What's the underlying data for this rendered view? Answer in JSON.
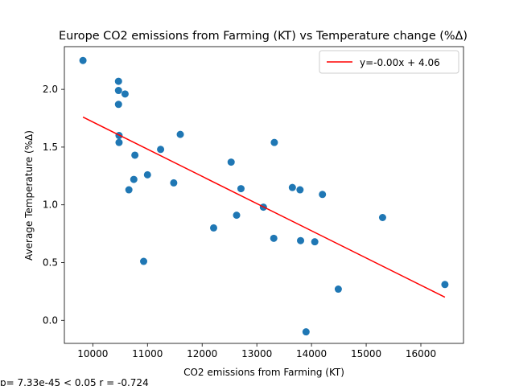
{
  "chart_data": {
    "type": "scatter",
    "title": "Europe CO2 emissions from Farming (KT) vs Temperature change (%Δ)",
    "xlabel": "CO2 emissions from Farming (KT)",
    "ylabel": "Average Temperature (%Δ)",
    "xlim": [
      9480,
      16780
    ],
    "ylim": [
      -0.2,
      2.37
    ],
    "x_ticks": [
      10000,
      11000,
      12000,
      13000,
      14000,
      15000,
      16000
    ],
    "y_ticks": [
      0.0,
      0.5,
      1.0,
      1.5,
      2.0
    ],
    "x_tick_labels": [
      "10000",
      "11000",
      "12000",
      "13000",
      "14000",
      "15000",
      "16000"
    ],
    "y_tick_labels": [
      "0.0",
      "0.5",
      "1.0",
      "1.5",
      "2.0"
    ],
    "grid": false,
    "legend_position": "top-right",
    "point_color": "#1f77b4",
    "fit_color": "#ff0000",
    "points": [
      {
        "x": 9820,
        "y": 2.25
      },
      {
        "x": 10470,
        "y": 2.07
      },
      {
        "x": 10470,
        "y": 1.99
      },
      {
        "x": 10470,
        "y": 1.87
      },
      {
        "x": 10590,
        "y": 1.96
      },
      {
        "x": 10480,
        "y": 1.6
      },
      {
        "x": 10480,
        "y": 1.54
      },
      {
        "x": 10770,
        "y": 1.43
      },
      {
        "x": 10750,
        "y": 1.22
      },
      {
        "x": 10660,
        "y": 1.13
      },
      {
        "x": 11000,
        "y": 1.26
      },
      {
        "x": 11240,
        "y": 1.48
      },
      {
        "x": 11600,
        "y": 1.61
      },
      {
        "x": 11480,
        "y": 1.19
      },
      {
        "x": 10930,
        "y": 0.51
      },
      {
        "x": 12210,
        "y": 0.8
      },
      {
        "x": 12530,
        "y": 1.37
      },
      {
        "x": 12710,
        "y": 1.14
      },
      {
        "x": 12630,
        "y": 0.91
      },
      {
        "x": 13120,
        "y": 0.98
      },
      {
        "x": 13320,
        "y": 1.54
      },
      {
        "x": 13650,
        "y": 1.15
      },
      {
        "x": 13790,
        "y": 1.13
      },
      {
        "x": 13310,
        "y": 0.71
      },
      {
        "x": 13800,
        "y": 0.69
      },
      {
        "x": 14060,
        "y": 0.68
      },
      {
        "x": 14200,
        "y": 1.09
      },
      {
        "x": 14490,
        "y": 0.27
      },
      {
        "x": 13900,
        "y": -0.1
      },
      {
        "x": 15300,
        "y": 0.89
      },
      {
        "x": 16440,
        "y": 0.31
      }
    ],
    "fit_line": {
      "label": "y=-0.00x + 4.06",
      "x": [
        9820,
        16440
      ],
      "y": [
        1.76,
        0.2
      ]
    },
    "annotation": "p= 7.33e-45 < 0.05    r = -0.724"
  }
}
